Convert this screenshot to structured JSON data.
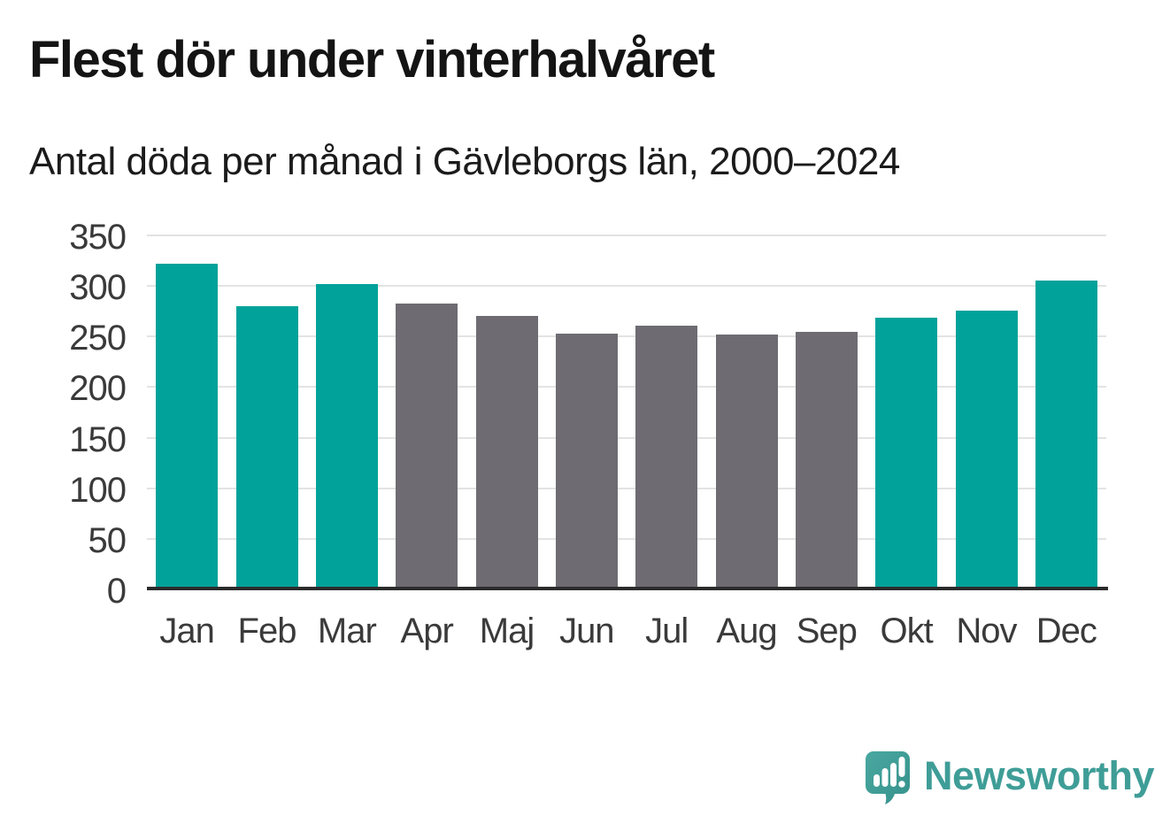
{
  "chart_data": {
    "type": "bar",
    "title": "Flest dör under vinterhalvåret",
    "subtitle": "Antal döda per månad i Gävleborgs län, 2000–2024",
    "categories": [
      "Jan",
      "Feb",
      "Mar",
      "Apr",
      "Maj",
      "Jun",
      "Jul",
      "Aug",
      "Sep",
      "Okt",
      "Nov",
      "Dec"
    ],
    "values": [
      322,
      280,
      302,
      283,
      270,
      253,
      261,
      252,
      255,
      269,
      276,
      305
    ],
    "bar_colors": [
      "#01a29a",
      "#01a29a",
      "#01a29a",
      "#6e6b72",
      "#6e6b72",
      "#6e6b72",
      "#6e6b72",
      "#6e6b72",
      "#6e6b72",
      "#01a29a",
      "#01a29a",
      "#01a29a"
    ],
    "palette": {
      "winter_highlight": "#01a29a",
      "summer_neutral": "#6e6b72"
    },
    "xlabel": "",
    "ylabel": "",
    "ylim": [
      0,
      350
    ],
    "yticks": [
      0,
      50,
      100,
      150,
      200,
      250,
      300,
      350
    ],
    "grid": true,
    "legend": "none"
  },
  "footer": {
    "brand": "Newsworthy",
    "brand_color": "#3f9d97",
    "logo_icon": "newsworthy-speech-bubble-chart-icon"
  }
}
